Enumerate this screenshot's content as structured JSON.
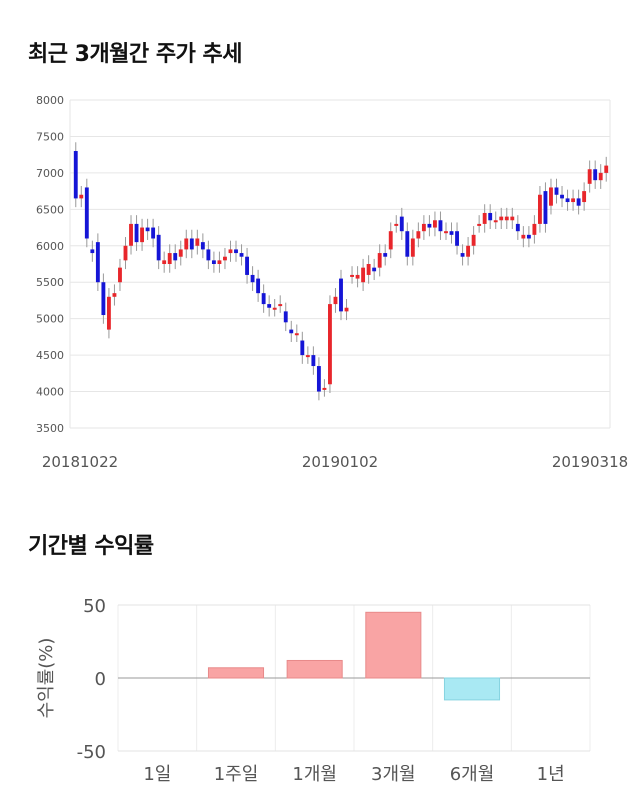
{
  "candle_title": "최근 3개월간 주가 추세",
  "returns_title": "기간별 수익률",
  "chart_data": [
    {
      "type": "candlestick",
      "y_ticks": [
        "8000",
        "7500",
        "7000",
        "6500",
        "6000",
        "5500",
        "5000",
        "4500",
        "4000",
        "3500"
      ],
      "ylim": [
        3500,
        8000
      ],
      "x_labels": [
        "20181022",
        "20190102",
        "20190318"
      ],
      "grid": true,
      "colors": {
        "up": "#e8262b",
        "down": "#1515d6",
        "wick": "#999999"
      },
      "candles": [
        {
          "o": 7300,
          "c": 6650
        },
        {
          "o": 6650,
          "c": 6700
        },
        {
          "o": 6800,
          "c": 6100
        },
        {
          "o": 5950,
          "c": 5900
        },
        {
          "o": 6050,
          "c": 5500
        },
        {
          "o": 5500,
          "c": 5050
        },
        {
          "o": 4850,
          "c": 5300
        },
        {
          "o": 5300,
          "c": 5350
        },
        {
          "o": 5500,
          "c": 5700
        },
        {
          "o": 5800,
          "c": 6000
        },
        {
          "o": 6000,
          "c": 6300
        },
        {
          "o": 6300,
          "c": 6050
        },
        {
          "o": 6050,
          "c": 6250
        },
        {
          "o": 6250,
          "c": 6200
        },
        {
          "o": 6250,
          "c": 6100
        },
        {
          "o": 6150,
          "c": 5800
        },
        {
          "o": 5750,
          "c": 5800
        },
        {
          "o": 5750,
          "c": 5900
        },
        {
          "o": 5900,
          "c": 5800
        },
        {
          "o": 5850,
          "c": 5950
        },
        {
          "o": 5950,
          "c": 6100
        },
        {
          "o": 6100,
          "c": 5950
        },
        {
          "o": 6000,
          "c": 6100
        },
        {
          "o": 6050,
          "c": 5950
        },
        {
          "o": 5950,
          "c": 5800
        },
        {
          "o": 5800,
          "c": 5750
        },
        {
          "o": 5750,
          "c": 5800
        },
        {
          "o": 5800,
          "c": 5850
        },
        {
          "o": 5900,
          "c": 5950
        },
        {
          "o": 5950,
          "c": 5900
        },
        {
          "o": 5900,
          "c": 5850
        },
        {
          "o": 5850,
          "c": 5600
        },
        {
          "o": 5600,
          "c": 5500
        },
        {
          "o": 5550,
          "c": 5350
        },
        {
          "o": 5350,
          "c": 5200
        },
        {
          "o": 5200,
          "c": 5150
        },
        {
          "o": 5150,
          "c": 5150
        },
        {
          "o": 5200,
          "c": 5200
        },
        {
          "o": 5100,
          "c": 4950
        },
        {
          "o": 4850,
          "c": 4800
        },
        {
          "o": 4800,
          "c": 4800
        },
        {
          "o": 4700,
          "c": 4500
        },
        {
          "o": 4500,
          "c": 4500
        },
        {
          "o": 4500,
          "c": 4350
        },
        {
          "o": 4350,
          "c": 4000
        },
        {
          "o": 4050,
          "c": 4050
        },
        {
          "o": 4100,
          "c": 5200
        },
        {
          "o": 5200,
          "c": 5300
        },
        {
          "o": 5550,
          "c": 5100
        },
        {
          "o": 5100,
          "c": 5150
        },
        {
          "o": 5600,
          "c": 5600
        },
        {
          "o": 5550,
          "c": 5600
        },
        {
          "o": 5500,
          "c": 5700
        },
        {
          "o": 5600,
          "c": 5750
        },
        {
          "o": 5700,
          "c": 5650
        },
        {
          "o": 5700,
          "c": 5900
        },
        {
          "o": 5900,
          "c": 5850
        },
        {
          "o": 5950,
          "c": 6200
        },
        {
          "o": 6300,
          "c": 6300
        },
        {
          "o": 6400,
          "c": 6200
        },
        {
          "o": 6200,
          "c": 5850
        },
        {
          "o": 5850,
          "c": 6100
        },
        {
          "o": 6100,
          "c": 6200
        },
        {
          "o": 6200,
          "c": 6300
        },
        {
          "o": 6300,
          "c": 6250
        },
        {
          "o": 6250,
          "c": 6350
        },
        {
          "o": 6350,
          "c": 6200
        },
        {
          "o": 6200,
          "c": 6200
        },
        {
          "o": 6200,
          "c": 6150
        },
        {
          "o": 6200,
          "c": 6000
        },
        {
          "o": 5900,
          "c": 5850
        },
        {
          "o": 5850,
          "c": 6000
        },
        {
          "o": 6000,
          "c": 6150
        },
        {
          "o": 6300,
          "c": 6300
        },
        {
          "o": 6300,
          "c": 6450
        },
        {
          "o": 6450,
          "c": 6350
        },
        {
          "o": 6350,
          "c": 6350
        },
        {
          "o": 6350,
          "c": 6400
        },
        {
          "o": 6350,
          "c": 6400
        },
        {
          "o": 6350,
          "c": 6400
        },
        {
          "o": 6300,
          "c": 6200
        },
        {
          "o": 6100,
          "c": 6150
        },
        {
          "o": 6150,
          "c": 6100
        },
        {
          "o": 6150,
          "c": 6300
        },
        {
          "o": 6300,
          "c": 6700
        },
        {
          "o": 6750,
          "c": 6300
        },
        {
          "o": 6550,
          "c": 6800
        },
        {
          "o": 6800,
          "c": 6700
        },
        {
          "o": 6700,
          "c": 6650
        },
        {
          "o": 6650,
          "c": 6600
        },
        {
          "o": 6600,
          "c": 6650
        },
        {
          "o": 6650,
          "c": 6550
        },
        {
          "o": 6600,
          "c": 6750
        },
        {
          "o": 6850,
          "c": 7050
        },
        {
          "o": 7050,
          "c": 6900
        },
        {
          "o": 6900,
          "c": 7000
        },
        {
          "o": 7000,
          "c": 7100
        }
      ]
    },
    {
      "type": "bar",
      "ylabel": "수익률(%)",
      "ylim": [
        -50,
        50
      ],
      "y_ticks": [
        "50",
        "0",
        "-50"
      ],
      "categories": [
        "1일",
        "1주일",
        "1개월",
        "3개월",
        "6개월",
        "1년"
      ],
      "values": [
        0,
        7,
        12,
        45,
        -15,
        0
      ],
      "colors": {
        "positive": "#f9a4a4",
        "negative": "#a9e9f3"
      },
      "grid": true
    }
  ]
}
